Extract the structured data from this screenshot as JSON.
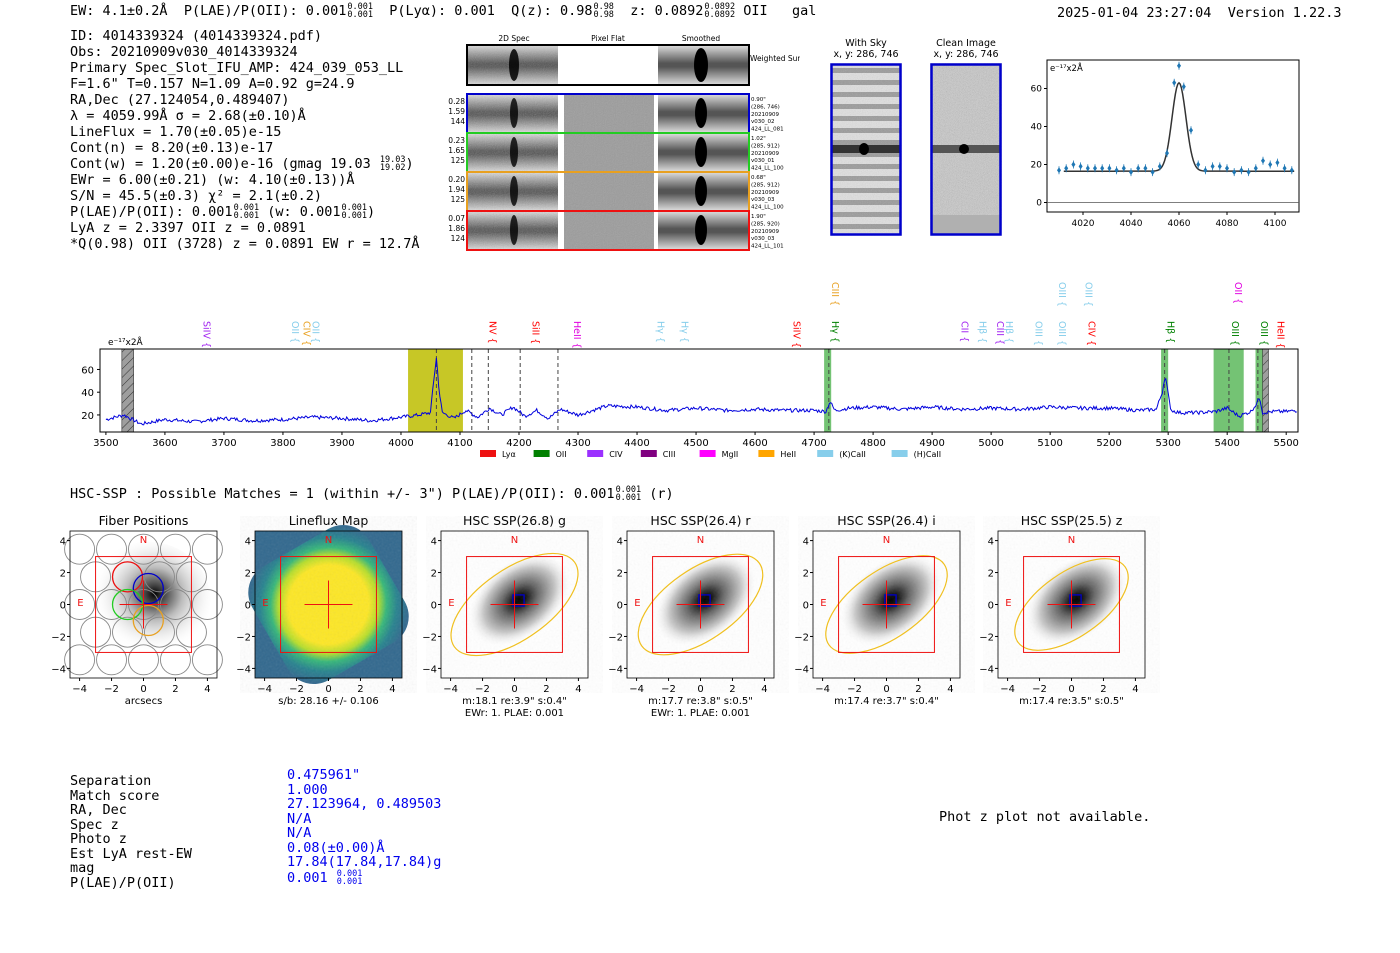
{
  "header": {
    "ew_label": "EW: 4.1±0.2Å",
    "plae_label": "P(LAE)/P(OII): 0.001",
    "plae_up": "0.001",
    "plae_dn": "0.001",
    "plya_label": "P(Lyα): 0.001",
    "qz_label": "Q(z): 0.98",
    "qz_up": "0.98",
    "qz_dn": "0.98",
    "z_label": "z: 0.0892",
    "z_up": "0.0892",
    "z_dn": "0.0892",
    "line_name": "OII",
    "class": "gal",
    "timestamp": "2025-01-04 23:27:04",
    "version": "Version 1.22.3"
  },
  "detection": {
    "id": "ID: 4014339324 (4014339324.pdf)",
    "obs": "Obs: 20210909v030_4014339324",
    "primary": "Primary Spec_Slot_IFU_AMP: 424_039_053_LL",
    "params": "F=1.6\"  T=0.157  N=1.09  A=0.92  g=24.9",
    "radec": "RA,Dec (27.124054,0.489407)",
    "lambda": "λ = 4059.99Å  σ = 2.68(±0.10)Å",
    "lineflux": "LineFlux = 1.70(±0.05)e-15",
    "contn": "Cont(n) = 8.20(±0.13)e-17",
    "contw": "Cont(w) = 1.20(±0.00)e-16 (gmag 19.03",
    "contw_up": "19.03",
    "contw_dn": "19.02",
    "ewr": "EWr = 6.00(±0.21) (w: 4.10(±0.13))Å",
    "sn": "S/N = 45.5(±0.3)  χ² = 2.1(±0.2)",
    "plae_a": "P(LAE)/P(OII): 0.001",
    "plae_a_up": "0.001",
    "plae_a_dn": "0.001",
    "plae_b": "(w: 0.001",
    "plae_b_up": "0.001",
    "plae_b_dn": "0.001",
    "lya_z": "LyA z = 2.3397  OII z = 0.0891",
    "qline": "*Q(0.98) OII (3728) z = 0.0891  EW r = 12.7Å"
  },
  "cutouts": {
    "col_labels": [
      "2D Spec",
      "Pixel Flat",
      "Smoothed"
    ],
    "weighted_sum": "Weighted Sum",
    "rows": [
      {
        "color": "#0000cc",
        "l1": "0.28",
        "l2": "1.59",
        "l3": "144",
        "r1": "0.90\"",
        "r2": "(286, 746)",
        "r3": "20210909",
        "r4": "v030_02",
        "r5": "424_LL_081"
      },
      {
        "color": "#22cc22",
        "l1": "0.23",
        "l2": "1.65",
        "l3": "125",
        "r1": "1.02\"",
        "r2": "(285, 912)",
        "r3": "20210909",
        "r4": "v030_01",
        "r5": "424_LL_100"
      },
      {
        "color": "#e8a020",
        "l1": "0.20",
        "l2": "1.94",
        "l3": "125",
        "r1": "0.68\"",
        "r2": "(285, 912)",
        "r3": "20210909",
        "r4": "v030_03",
        "r5": "424_LL_100"
      },
      {
        "color": "#ee1111",
        "l1": "0.07",
        "l2": "1.86",
        "l3": "124",
        "r1": "1.90\"",
        "r2": "(285, 920)",
        "r3": "20210909",
        "r4": "v030_03",
        "r5": "424_LL_101"
      }
    ],
    "with_sky_title": "With Sky",
    "with_sky_xy": "x, y: 286, 746",
    "clean_title": "Clean Image",
    "clean_xy": "x, y: 286, 746"
  },
  "line_fit_chart": {
    "type": "scatter",
    "unit_label": "e⁻¹⁷x2Å",
    "xlim": [
      4005,
      4110
    ],
    "ylim": [
      -5,
      75
    ],
    "xticks": [
      4020,
      4040,
      4060,
      4080,
      4100
    ],
    "yticks": [
      0,
      20,
      40,
      60
    ],
    "points_x": [
      4010,
      4013,
      4016,
      4019,
      4022,
      4025,
      4028,
      4031,
      4034,
      4037,
      4040,
      4043,
      4046,
      4049,
      4052,
      4055,
      4058,
      4060,
      4062,
      4065,
      4068,
      4071,
      4074,
      4077,
      4080,
      4083,
      4086,
      4089,
      4092,
      4095,
      4098,
      4101,
      4104,
      4107
    ],
    "points_y": [
      17,
      18,
      20,
      19,
      18,
      18,
      18,
      18,
      17,
      18,
      16,
      18,
      18,
      16,
      19,
      26,
      63,
      72,
      61,
      38,
      20,
      17,
      19,
      19,
      18,
      16,
      17,
      16,
      18,
      22,
      20,
      21,
      18,
      17
    ],
    "model_baseline": 16.5,
    "model_peak": 63,
    "model_center": 4060,
    "model_sigma": 2.9
  },
  "chart_data": {
    "type": "line",
    "unit_label": "e⁻¹⁷x2Å",
    "xlim": [
      3490,
      5520
    ],
    "ylim": [
      5,
      78
    ],
    "xticks": [
      3500,
      3600,
      3700,
      3800,
      3900,
      4000,
      4100,
      4200,
      4300,
      4400,
      4500,
      4600,
      4700,
      4800,
      4900,
      5000,
      5100,
      5200,
      5300,
      5400,
      5500
    ],
    "yticks": [
      20,
      40,
      60
    ],
    "spectrum": {
      "anchors_x": [
        3500,
        3530,
        3560,
        3600,
        3650,
        3700,
        3750,
        3800,
        3850,
        3900,
        3950,
        4000,
        4030,
        4050,
        4055,
        4060,
        4065,
        4070,
        4090,
        4110,
        4130,
        4150,
        4170,
        4190,
        4210,
        4230,
        4250,
        4270,
        4300,
        4350,
        4400,
        4450,
        4500,
        4550,
        4600,
        4650,
        4700,
        4720,
        4727,
        4735,
        4760,
        4800,
        4850,
        4900,
        4950,
        5000,
        5050,
        5100,
        5150,
        5200,
        5250,
        5280,
        5290,
        5295,
        5300,
        5305,
        5320,
        5350,
        5380,
        5400,
        5420,
        5440,
        5450,
        5455,
        5460,
        5480,
        5500,
        5520
      ],
      "anchors_y": [
        16,
        20,
        12,
        16,
        14,
        17,
        15,
        16,
        18,
        17,
        15,
        18,
        20,
        22,
        48,
        70,
        40,
        22,
        17,
        24,
        18,
        26,
        20,
        27,
        19,
        24,
        17,
        25,
        20,
        28,
        27,
        24,
        26,
        24,
        25,
        24,
        24,
        23,
        32,
        24,
        26,
        27,
        25,
        27,
        25,
        26,
        25,
        27,
        26,
        26,
        24,
        25,
        40,
        55,
        38,
        24,
        22,
        22,
        23,
        26,
        19,
        23,
        30,
        36,
        22,
        23,
        23,
        24
      ]
    },
    "bands": [
      {
        "x0": 4012,
        "x1": 4105,
        "color": "#bdbd00"
      },
      {
        "x0": 4717,
        "x1": 4729,
        "color": "#5cb85c"
      },
      {
        "x0": 5288,
        "x1": 5300,
        "color": "#5cb85c"
      },
      {
        "x0": 5377,
        "x1": 5428,
        "color": "#5cb85c"
      },
      {
        "x0": 5448,
        "x1": 5460,
        "color": "#5cb85c"
      }
    ],
    "hatched": [
      {
        "x0": 3527,
        "x1": 3547
      },
      {
        "x0": 5460,
        "x1": 5470
      }
    ],
    "dashed": [
      4060,
      4120,
      4148,
      4202,
      4266,
      4725,
      5294,
      5403,
      5452
    ],
    "labels": [
      {
        "x": 3660,
        "text": "SiIV {",
        "color": "#a020f0",
        "row": 0
      },
      {
        "x": 3810,
        "text": "OII {",
        "color": "#87ceeb",
        "row": 0
      },
      {
        "x": 3830,
        "text": "CIV {",
        "color": "#e8a020",
        "row": 0
      },
      {
        "x": 3845,
        "text": "OII {",
        "color": "#87ceeb",
        "row": 0
      },
      {
        "x": 4145,
        "text": "NV {",
        "color": "#ff0000",
        "row": 0
      },
      {
        "x": 4218,
        "text": "SiII {",
        "color": "#ff0000",
        "row": 0
      },
      {
        "x": 4288,
        "text": "HeII {",
        "color": "#e000e0",
        "row": 0
      },
      {
        "x": 4430,
        "text": "Hγ {",
        "color": "#87ceeb",
        "row": 0
      },
      {
        "x": 4470,
        "text": "Hγ {",
        "color": "#87ceeb",
        "row": 0
      },
      {
        "x": 4660,
        "text": "SiIV {",
        "color": "#ff0000",
        "row": 0
      },
      {
        "x": 4725,
        "text": "CIII {",
        "color": "#e8a020",
        "row": 1
      },
      {
        "x": 4725,
        "text": "Hγ {",
        "color": "#008000",
        "row": 0
      },
      {
        "x": 4945,
        "text": "CII {",
        "color": "#a020f0",
        "row": 0
      },
      {
        "x": 4975,
        "text": "Hβ {",
        "color": "#87ceeb",
        "row": 0
      },
      {
        "x": 5005,
        "text": "CIII {",
        "color": "#a020f0",
        "row": 0
      },
      {
        "x": 5020,
        "text": "Hβ {",
        "color": "#87ceeb",
        "row": 0
      },
      {
        "x": 5070,
        "text": "OIII {",
        "color": "#87ceeb",
        "row": 0
      },
      {
        "x": 5110,
        "text": "OIII {",
        "color": "#87ceeb",
        "row": 0
      },
      {
        "x": 5110,
        "text": "OIII {",
        "color": "#87ceeb",
        "row": 1
      },
      {
        "x": 5155,
        "text": "OIII {",
        "color": "#87ceeb",
        "row": 1
      },
      {
        "x": 5160,
        "text": "CIV {",
        "color": "#ff0000",
        "row": 0
      },
      {
        "x": 5294,
        "text": "Hβ {",
        "color": "#008000",
        "row": 0
      },
      {
        "x": 5403,
        "text": "OIII {",
        "color": "#008000",
        "row": 0
      },
      {
        "x": 5408,
        "text": "OII {",
        "color": "#e000e0",
        "row": 1
      },
      {
        "x": 5452,
        "text": "OIII {",
        "color": "#008000",
        "row": 0
      },
      {
        "x": 5480,
        "text": "HeII {",
        "color": "#ff0000",
        "row": 0
      }
    ],
    "legend": [
      {
        "label": "Lyα",
        "color": "#ee1111"
      },
      {
        "label": "OII",
        "color": "#008000"
      },
      {
        "label": "CIV",
        "color": "#9b30ff"
      },
      {
        "label": "CIII",
        "color": "#800080"
      },
      {
        "label": "MgII",
        "color": "#ff00ff"
      },
      {
        "label": "HeII",
        "color": "#ffa500"
      },
      {
        "label": "(K)CaII",
        "color": "#87ceeb"
      },
      {
        "label": "(H)CaII",
        "color": "#87ceeb"
      }
    ]
  },
  "hsc": {
    "summary": "HSC-SSP : Possible Matches = 1 (within +/- 3\")  P(LAE)/P(OII): 0.001",
    "summary_up": "0.001",
    "summary_dn": "0.001",
    "summary_tail": "(r)",
    "axis_ticks": [
      "4",
      "2",
      "0",
      "−2",
      "−4"
    ],
    "xaxis_ticks": [
      "−4",
      "−2",
      "0",
      "2",
      "4"
    ],
    "north": "N",
    "east": "E",
    "panels": [
      {
        "title": "Fiber Positions",
        "sub1": "arcsecs",
        "sub2": "",
        "kind": "fiber"
      },
      {
        "title": "Lineflux Map",
        "sub1": "s/b: 28.16 +/- 0.106",
        "sub2": "",
        "kind": "flux"
      },
      {
        "title": "HSC SSP(26.8) g",
        "sub1": "m:18.1  re:3.9\"  s:0.4\"",
        "sub2": "EWr: 1. PLAE: 0.001",
        "kind": "hsc",
        "ell_rx": 2.2,
        "ell_ry": 4.6
      },
      {
        "title": "HSC SSP(26.4) r",
        "sub1": "m:17.7  re:3.8\"  s:0.5\"",
        "sub2": "EWr: 1. PLAE: 0.001",
        "kind": "hsc",
        "ell_rx": 2.2,
        "ell_ry": 4.5
      },
      {
        "title": "HSC SSP(26.4) i",
        "sub1": "m:17.4  re:3.7\"  s:0.4\"",
        "sub2": "",
        "kind": "hsc",
        "ell_rx": 2.1,
        "ell_ry": 4.4
      },
      {
        "title": "HSC SSP(25.5) z",
        "sub1": "m:17.4  re:3.5\"  s:0.5\"",
        "sub2": "",
        "kind": "hsc",
        "ell_rx": 2.0,
        "ell_ry": 4.1
      }
    ]
  },
  "match_table": {
    "labels": [
      "Separation",
      "Match score",
      "RA, Dec",
      "Spec z",
      "Photo z",
      "Est LyA rest-EW",
      "mag",
      "P(LAE)/P(OII)"
    ],
    "values": [
      "0.475961\"",
      "1.000",
      "27.123964, 0.489503",
      "N/A",
      "N/A",
      "0.08(±0.00)Å",
      "17.84(17.84,17.84)g",
      "0.001"
    ],
    "plae_up": "0.001",
    "plae_dn": "0.001"
  },
  "photz_note": "Phot z plot not available."
}
